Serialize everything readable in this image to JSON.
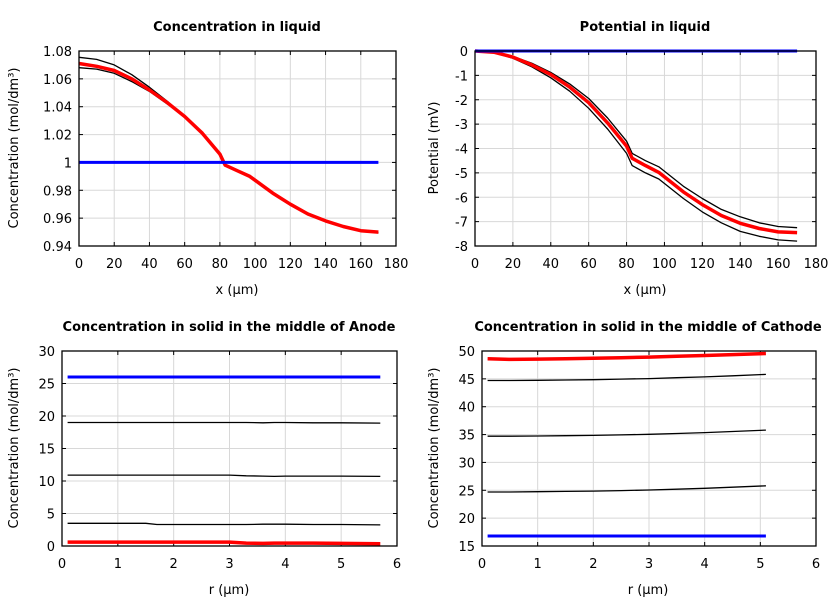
{
  "chart_data": [
    {
      "type": "line",
      "title": "Concentration in liquid",
      "xlabel": "x (µm)",
      "ylabel": "Concentration (mol/dm³)",
      "xlim": [
        0,
        180
      ],
      "ylim": [
        0.94,
        1.08
      ],
      "xticks": [
        "0",
        "20",
        "40",
        "60",
        "80",
        "100",
        "120",
        "140",
        "160",
        "180"
      ],
      "yticks": [
        "0.94",
        "0.96",
        "0.98",
        "1",
        "1.02",
        "1.04",
        "1.06",
        "1.08"
      ],
      "grid": true,
      "x": [
        0,
        10,
        20,
        30,
        40,
        50,
        60,
        70,
        80,
        83,
        90,
        97,
        110,
        120,
        130,
        140,
        150,
        160,
        170
      ],
      "series": [
        {
          "color": "#000000",
          "width": 1.3,
          "values": [
            1.0755,
            1.074,
            1.07,
            1.063,
            1.054,
            1.044,
            1.033,
            1.021,
            1.006,
            0.998,
            0.994,
            0.99,
            0.978,
            0.97,
            0.963,
            0.958,
            0.954,
            0.951,
            0.9495
          ]
        },
        {
          "color": "#000000",
          "width": 1.3,
          "values": [
            1.068,
            1.067,
            1.064,
            1.058,
            1.051,
            1.042,
            1.033,
            1.021,
            1.006,
            0.998,
            0.994,
            0.99,
            0.978,
            0.97,
            0.963,
            0.958,
            0.954,
            0.951,
            0.9495
          ]
        },
        {
          "color": "#ff0000",
          "width": 3.5,
          "values": [
            1.071,
            1.069,
            1.066,
            1.06,
            1.052,
            1.043,
            1.033,
            1.021,
            1.006,
            0.998,
            0.994,
            0.99,
            0.978,
            0.97,
            0.963,
            0.958,
            0.954,
            0.951,
            0.95
          ]
        },
        {
          "color": "#0000ff",
          "width": 3,
          "values": [
            1,
            1,
            1,
            1,
            1,
            1,
            1,
            1,
            1,
            1,
            1,
            1,
            1,
            1,
            1,
            1,
            1,
            1,
            1
          ]
        }
      ]
    },
    {
      "type": "line",
      "title": "Potential in liquid",
      "xlabel": "x (µm)",
      "ylabel": "Potential (mV)",
      "xlim": [
        0,
        180
      ],
      "ylim": [
        -8,
        0
      ],
      "xticks": [
        "0",
        "20",
        "40",
        "60",
        "80",
        "100",
        "120",
        "140",
        "160",
        "180"
      ],
      "yticks": [
        "-8",
        "-7",
        "-6",
        "-5",
        "-4",
        "-3",
        "-2",
        "-1",
        "0"
      ],
      "grid": true,
      "x": [
        0,
        10,
        20,
        30,
        40,
        50,
        60,
        70,
        80,
        83,
        90,
        97,
        110,
        120,
        130,
        140,
        150,
        160,
        170
      ],
      "series": [
        {
          "color": "#000000",
          "width": 1.3,
          "values": [
            0,
            -0.04,
            -0.22,
            -0.5,
            -0.88,
            -1.35,
            -1.95,
            -2.75,
            -3.7,
            -4.2,
            -4.5,
            -4.75,
            -5.55,
            -6.05,
            -6.5,
            -6.8,
            -7.05,
            -7.2,
            -7.25
          ]
        },
        {
          "color": "#000000",
          "width": 1.3,
          "values": [
            0,
            -0.06,
            -0.3,
            -0.65,
            -1.1,
            -1.65,
            -2.35,
            -3.2,
            -4.2,
            -4.7,
            -5.0,
            -5.25,
            -6.05,
            -6.6,
            -7.05,
            -7.4,
            -7.6,
            -7.75,
            -7.8
          ]
        },
        {
          "color": "#ff0000",
          "width": 3.5,
          "values": [
            0,
            -0.05,
            -0.25,
            -0.57,
            -0.97,
            -1.48,
            -2.12,
            -2.95,
            -3.9,
            -4.4,
            -4.7,
            -4.98,
            -5.78,
            -6.3,
            -6.75,
            -7.07,
            -7.28,
            -7.42,
            -7.45
          ]
        },
        {
          "color": "#0000ff",
          "width": 3,
          "values": [
            0,
            0,
            0,
            0,
            0,
            0,
            0,
            0,
            0,
            0,
            0,
            0,
            0,
            0,
            0,
            0,
            0,
            0,
            0
          ]
        }
      ]
    },
    {
      "type": "line",
      "title": "Concentration in solid in the middle of Anode",
      "xlabel": "r (µm)",
      "ylabel": "Concentration (mol/dm³)",
      "xlim": [
        0,
        6
      ],
      "ylim": [
        0,
        30
      ],
      "xticks": [
        "0",
        "1",
        "2",
        "3",
        "4",
        "5",
        "6"
      ],
      "yticks": [
        "0",
        "5",
        "10",
        "15",
        "20",
        "25",
        "30"
      ],
      "grid": true,
      "x": [
        0.1,
        0.5,
        1,
        1.5,
        1.7,
        2,
        2.5,
        3,
        3.3,
        3.6,
        3.8,
        4,
        4.5,
        5,
        5.7
      ],
      "series": [
        {
          "color": "#0000ff",
          "width": 3,
          "values": [
            26,
            26,
            26,
            26,
            26,
            26,
            26,
            26,
            26,
            26,
            26,
            26,
            26,
            26,
            26
          ]
        },
        {
          "color": "#000000",
          "width": 1.3,
          "values": [
            19,
            19,
            19,
            19,
            19,
            19,
            19,
            19,
            19,
            18.95,
            19,
            19,
            18.95,
            18.95,
            18.9
          ]
        },
        {
          "color": "#000000",
          "width": 1.3,
          "values": [
            10.9,
            10.9,
            10.9,
            10.9,
            10.9,
            10.9,
            10.9,
            10.9,
            10.8,
            10.75,
            10.7,
            10.75,
            10.75,
            10.75,
            10.7
          ]
        },
        {
          "color": "#000000",
          "width": 1.3,
          "values": [
            3.5,
            3.5,
            3.5,
            3.5,
            3.3,
            3.3,
            3.3,
            3.3,
            3.3,
            3.35,
            3.35,
            3.35,
            3.3,
            3.3,
            3.25
          ]
        },
        {
          "color": "#ff0000",
          "width": 3.5,
          "values": [
            0.6,
            0.6,
            0.6,
            0.6,
            0.6,
            0.6,
            0.6,
            0.6,
            0.45,
            0.4,
            0.45,
            0.45,
            0.45,
            0.4,
            0.35
          ]
        }
      ]
    },
    {
      "type": "line",
      "title": "Concentration in solid in the middle of Cathode",
      "xlabel": "r (µm)",
      "ylabel": "Concentration (mol/dm³)",
      "xlim": [
        0,
        6
      ],
      "ylim": [
        15,
        50
      ],
      "xticks": [
        "0",
        "1",
        "2",
        "3",
        "4",
        "5",
        "6"
      ],
      "yticks": [
        "15",
        "20",
        "25",
        "30",
        "35",
        "40",
        "45",
        "50"
      ],
      "grid": true,
      "x": [
        0.1,
        0.5,
        1,
        1.5,
        2,
        2.5,
        3,
        3.5,
        4,
        4.5,
        5.1
      ],
      "series": [
        {
          "color": "#ff0000",
          "width": 3.5,
          "values": [
            48.6,
            48.5,
            48.55,
            48.6,
            48.7,
            48.8,
            48.9,
            49.05,
            49.2,
            49.35,
            49.55
          ]
        },
        {
          "color": "#000000",
          "width": 1.3,
          "values": [
            44.7,
            44.7,
            44.75,
            44.8,
            44.85,
            44.95,
            45.05,
            45.2,
            45.35,
            45.55,
            45.8
          ]
        },
        {
          "color": "#000000",
          "width": 1.3,
          "values": [
            34.7,
            34.7,
            34.75,
            34.8,
            34.85,
            34.95,
            35.05,
            35.2,
            35.35,
            35.55,
            35.8
          ]
        },
        {
          "color": "#000000",
          "width": 1.3,
          "values": [
            24.7,
            24.7,
            24.75,
            24.8,
            24.85,
            24.95,
            25.05,
            25.2,
            25.35,
            25.55,
            25.8
          ]
        },
        {
          "color": "#0000ff",
          "width": 3,
          "values": [
            16.8,
            16.8,
            16.8,
            16.8,
            16.8,
            16.8,
            16.8,
            16.8,
            16.8,
            16.8,
            16.8
          ]
        }
      ]
    }
  ]
}
